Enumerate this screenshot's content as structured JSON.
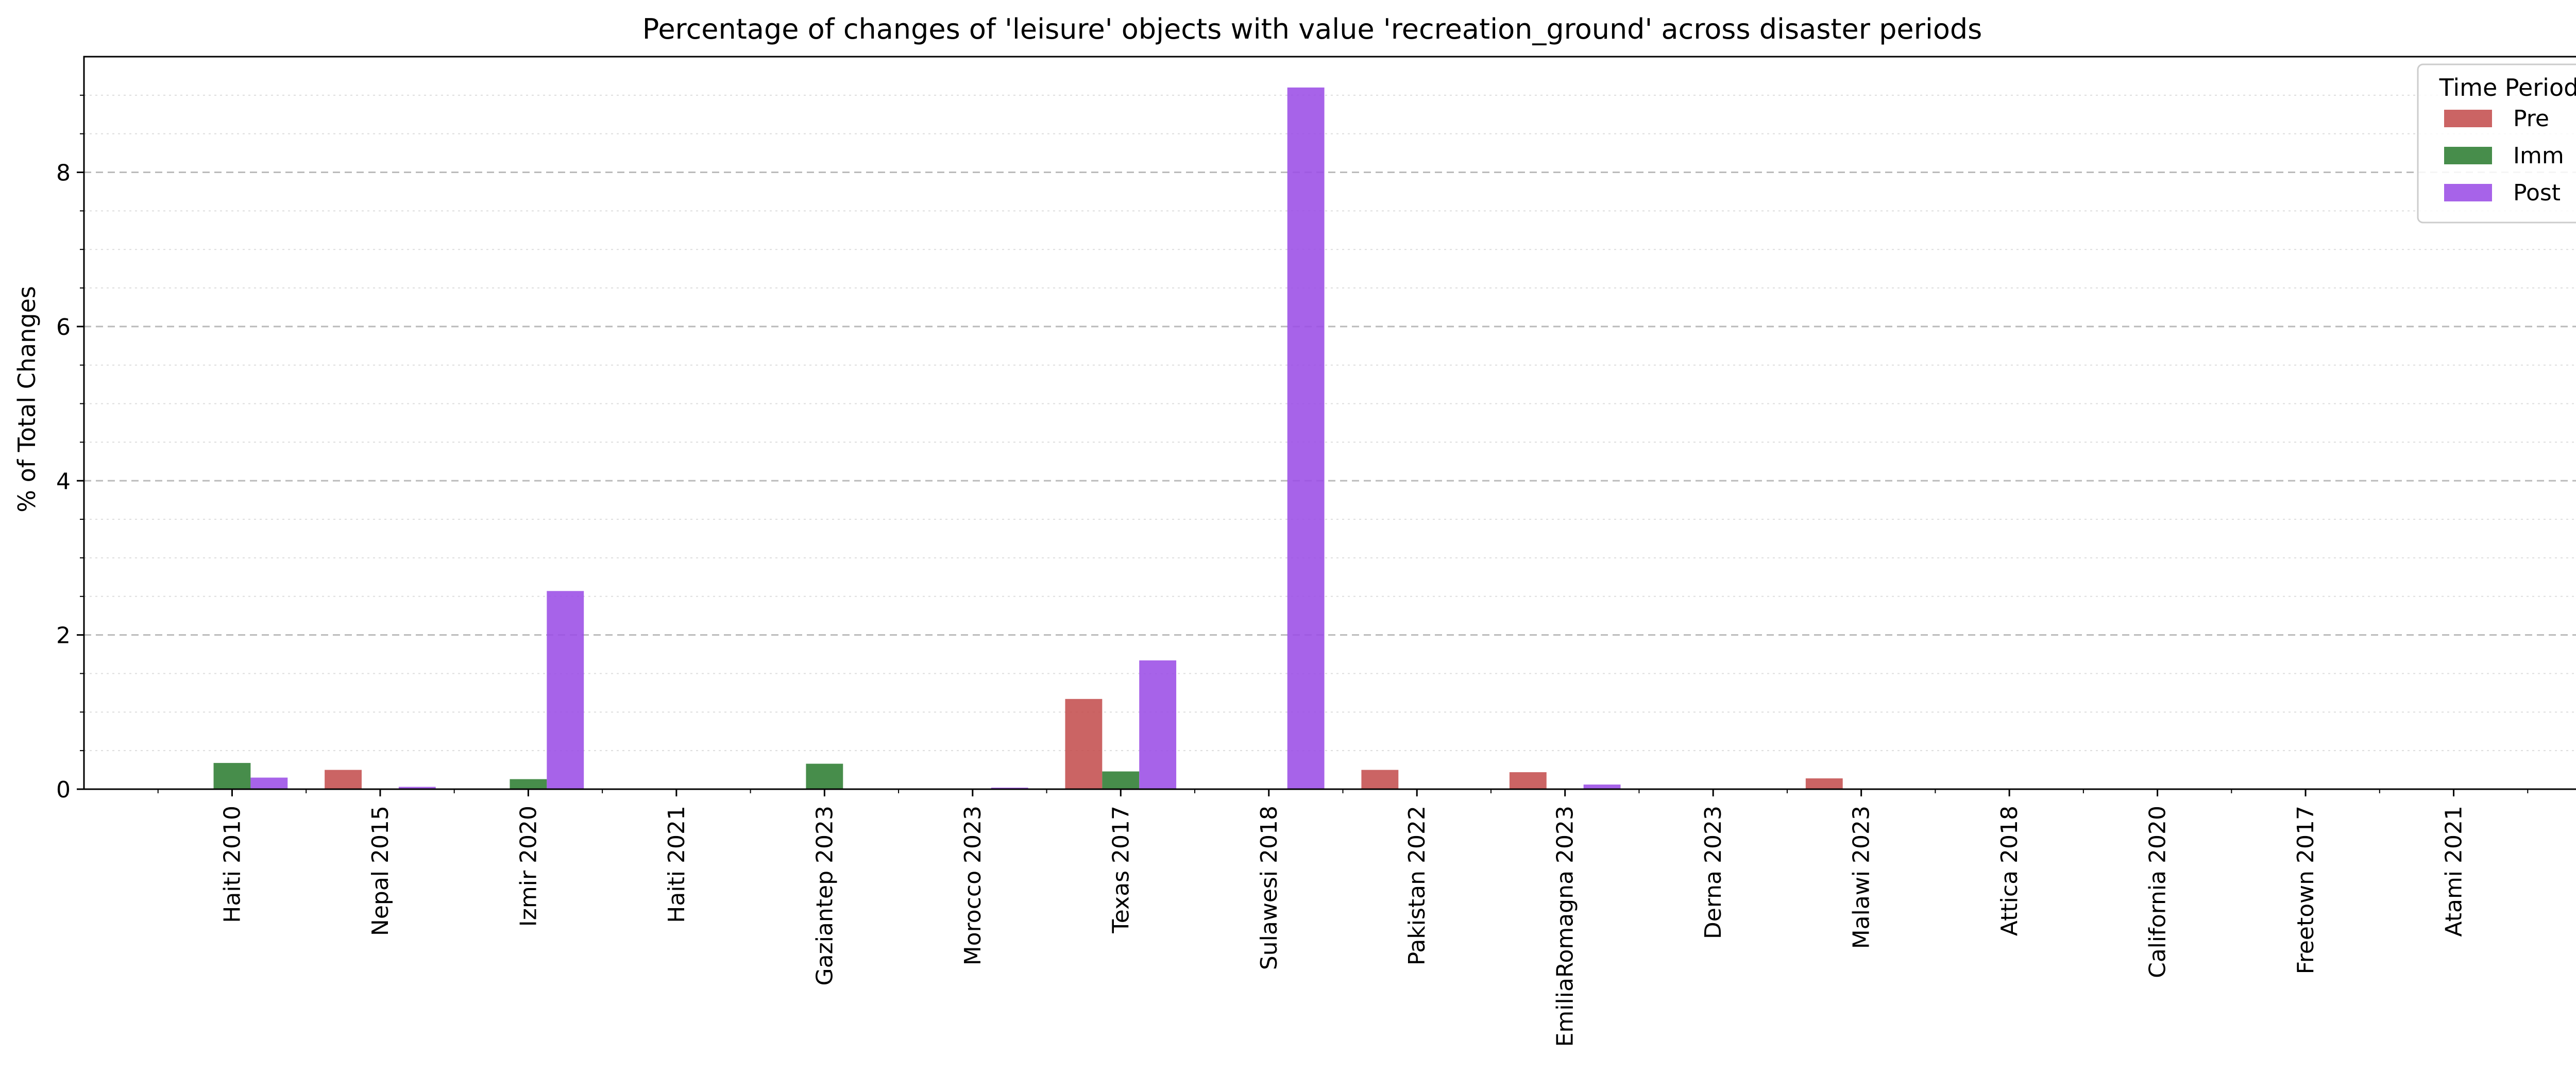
{
  "chart_data": {
    "type": "bar",
    "title": "Percentage of changes of 'leisure' objects with value 'recreation_ground' across disaster periods",
    "xlabel": "",
    "ylabel": "% of Total Changes",
    "ylim": [
      0,
      9.5
    ],
    "yticks": [
      "0",
      "2",
      "4",
      "6",
      "8"
    ],
    "grid": "y",
    "legend_position": "top-right",
    "legend_title": "Time Period",
    "categories": [
      "Haiti 2010",
      "Nepal 2015",
      "Izmir 2020",
      "Haiti 2021",
      "Gaziantep 2023",
      "Morocco 2023",
      "Texas 2017",
      "Sulawesi 2018",
      "Pakistan 2022",
      "EmiliaRomagna 2023",
      "Derna 2023",
      "Malawi 2023",
      "Attica 2018",
      "California 2020",
      "Freetown 2017",
      "Atami 2021"
    ],
    "series": [
      {
        "name": "Pre",
        "color": "#c44e4e",
        "values": [
          0,
          0.25,
          0,
          0,
          0,
          0,
          1.17,
          0,
          0.25,
          0.22,
          0,
          0.14,
          0,
          0,
          0,
          0
        ]
      },
      {
        "name": "Imm",
        "color": "#2e7d32",
        "values": [
          0.34,
          0,
          0.13,
          0,
          0.33,
          0,
          0.23,
          0,
          0,
          0,
          0,
          0,
          0,
          0,
          0,
          0
        ]
      },
      {
        "name": "Post",
        "color": "#9b4de6",
        "values": [
          0.15,
          0.03,
          2.57,
          0,
          0,
          0.02,
          1.67,
          9.1,
          0,
          0.06,
          0,
          0,
          0,
          0,
          0,
          0
        ]
      }
    ]
  }
}
